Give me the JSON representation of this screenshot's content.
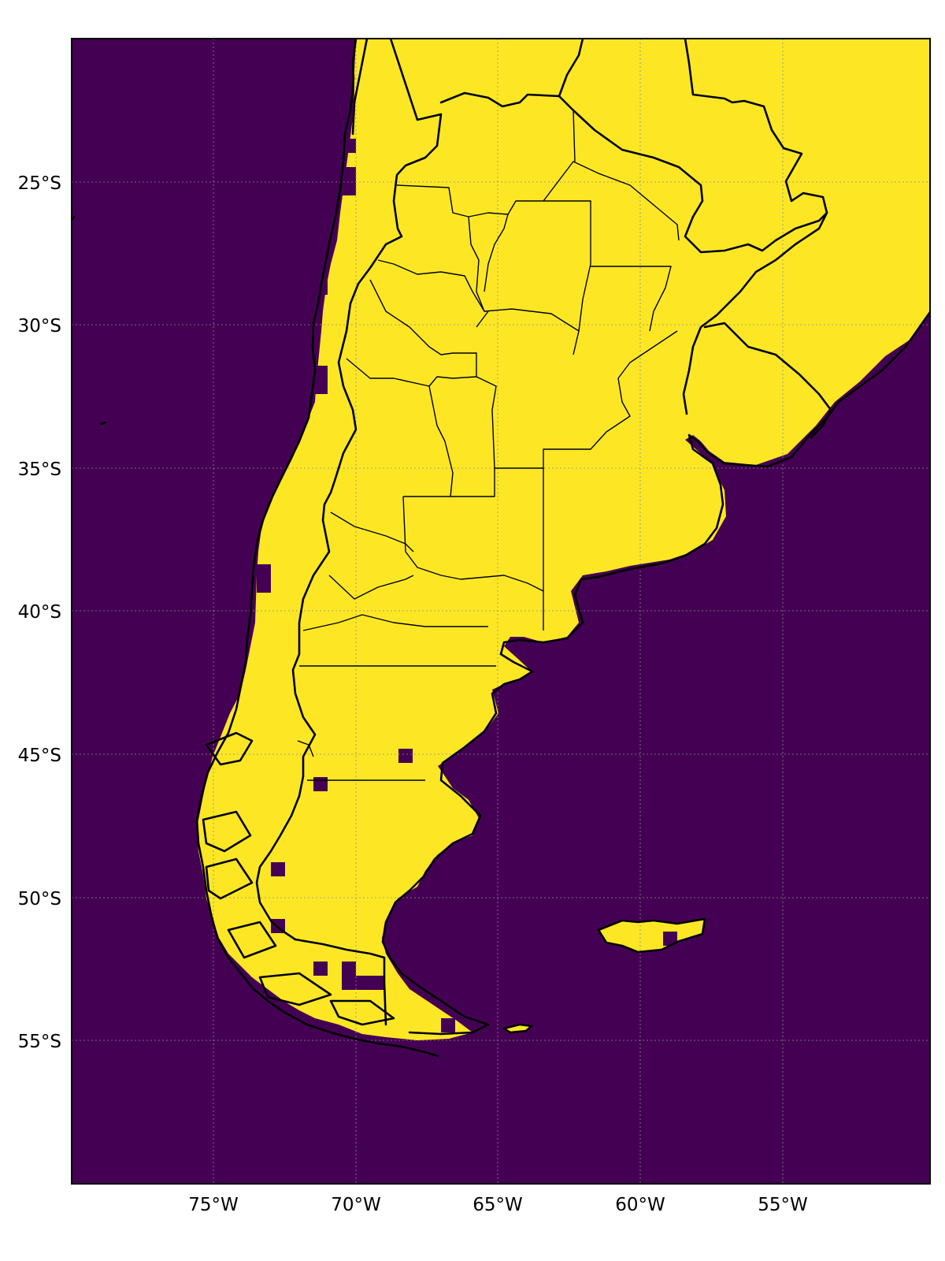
{
  "map": {
    "projection": "PlateCarree",
    "extent": {
      "lon_min": -80,
      "lon_max": -50,
      "lat_min": -60,
      "lat_max": -20
    },
    "colors": {
      "ocean": "#440154",
      "land": "#fde725",
      "coastline": "#000000",
      "gridline": "#8a8a8a"
    },
    "gridlines": true,
    "x_ticks": [
      {
        "lon": -75,
        "label": "75°W"
      },
      {
        "lon": -70,
        "label": "70°W"
      },
      {
        "lon": -65,
        "label": "65°W"
      },
      {
        "lon": -60,
        "label": "60°W"
      },
      {
        "lon": -55,
        "label": "55°W"
      }
    ],
    "y_ticks": [
      {
        "lat": -25,
        "label": "25°S"
      },
      {
        "lat": -30,
        "label": "30°S"
      },
      {
        "lat": -35,
        "label": "35°S"
      },
      {
        "lat": -40,
        "label": "40°S"
      },
      {
        "lat": -45,
        "label": "45°S"
      },
      {
        "lat": -50,
        "label": "50°S"
      },
      {
        "lat": -55,
        "label": "55°S"
      }
    ]
  }
}
